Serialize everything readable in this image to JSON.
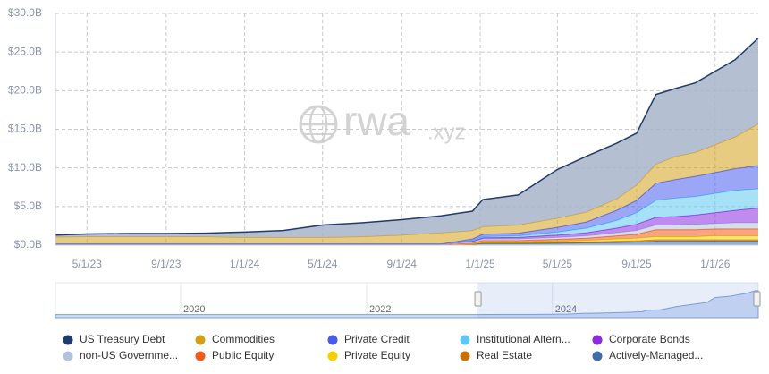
{
  "chart_data": {
    "type": "stacked-area",
    "watermark": {
      "main": "rwa",
      "suffix": ".xyz"
    },
    "x": [
      "2023-03-13",
      "2023-05-01",
      "2023-07-01",
      "2023-09-01",
      "2023-11-01",
      "2024-01-01",
      "2024-03-01",
      "2024-05-01",
      "2024-07-01",
      "2024-09-01",
      "2024-11-01",
      "2024-12-20",
      "2025-01-05",
      "2025-03-01",
      "2025-05-01",
      "2025-06-15",
      "2025-08-01",
      "2025-09-01",
      "2025-10-01",
      "2025-11-01",
      "2025-12-01",
      "2026-01-01",
      "2026-02-01",
      "2026-03-09"
    ],
    "xlim": [
      "2023-03-13",
      "2026-03-09"
    ],
    "xticks": [
      {
        "value": "2023-05-01",
        "label": "5/1/23"
      },
      {
        "value": "2023-09-01",
        "label": "9/1/23"
      },
      {
        "value": "2024-01-01",
        "label": "1/1/24"
      },
      {
        "value": "2024-05-01",
        "label": "5/1/24"
      },
      {
        "value": "2024-09-01",
        "label": "9/1/24"
      },
      {
        "value": "2025-01-01",
        "label": "1/1/25"
      },
      {
        "value": "2025-05-01",
        "label": "5/1/25"
      },
      {
        "value": "2025-09-01",
        "label": "9/1/25"
      },
      {
        "value": "2026-01-01",
        "label": "1/1/26"
      }
    ],
    "ylim": [
      0,
      30
    ],
    "yticks": [
      {
        "value": 0,
        "label": "$0.0B"
      },
      {
        "value": 5,
        "label": "$5.0B"
      },
      {
        "value": 10,
        "label": "$10.0B"
      },
      {
        "value": 15,
        "label": "$15.0B"
      },
      {
        "value": 20,
        "label": "$20.0B"
      },
      {
        "value": 25,
        "label": "$25.0B"
      },
      {
        "value": 30,
        "label": "$30.0B"
      }
    ],
    "grid": true,
    "series": [
      {
        "name": "US Treasury Debt",
        "color": "#1f3a6b",
        "values": [
          0.25,
          0.35,
          0.4,
          0.4,
          0.45,
          0.7,
          0.9,
          1.6,
          1.8,
          2.0,
          2.2,
          2.5,
          3.5,
          3.9,
          6.3,
          7.2,
          7.2,
          6.7,
          9.0,
          8.8,
          9.0,
          9.5,
          10.0,
          11.1
        ]
      },
      {
        "name": "Commodities",
        "color": "#d4a017",
        "values": [
          0.9,
          0.95,
          0.95,
          0.95,
          0.95,
          0.85,
          0.85,
          0.85,
          0.95,
          1.15,
          1.45,
          1.1,
          1.0,
          1.05,
          1.2,
          1.3,
          1.5,
          2.0,
          2.5,
          3.0,
          3.1,
          3.6,
          4.1,
          5.4
        ]
      },
      {
        "name": "Private Credit",
        "color": "#4a5cf0",
        "values": [
          0,
          0,
          0,
          0,
          0,
          0,
          0,
          0,
          0,
          0,
          0,
          0.2,
          0.3,
          0.35,
          0.6,
          0.8,
          1.3,
          1.6,
          2.2,
          2.4,
          2.6,
          2.7,
          2.8,
          3.0
        ]
      },
      {
        "name": "Institutional Altern...",
        "color": "#5cc8f2",
        "values": [
          0,
          0,
          0,
          0,
          0,
          0,
          0,
          0,
          0,
          0,
          0,
          0.1,
          0.15,
          0.2,
          0.4,
          0.6,
          1.0,
          1.5,
          2.2,
          2.4,
          2.4,
          2.5,
          2.6,
          2.5
        ]
      },
      {
        "name": "Corporate Bonds",
        "color": "#8b2be2",
        "values": [
          0,
          0,
          0,
          0,
          0,
          0,
          0,
          0,
          0,
          0,
          0,
          0.1,
          0.15,
          0.2,
          0.3,
          0.4,
          0.6,
          0.8,
          1.0,
          1.1,
          1.2,
          1.4,
          1.6,
          1.9
        ]
      },
      {
        "name": "non-US Governme...",
        "color": "#b2c3dc",
        "values": [
          0.1,
          0.1,
          0.1,
          0.1,
          0.1,
          0.1,
          0.1,
          0.1,
          0.1,
          0.1,
          0.1,
          0.15,
          0.2,
          0.2,
          0.25,
          0.3,
          0.4,
          0.5,
          0.6,
          0.6,
          0.7,
          0.7,
          0.8,
          0.8
        ]
      },
      {
        "name": "Public Equity",
        "color": "#f05a1a",
        "values": [
          0,
          0,
          0,
          0,
          0,
          0,
          0,
          0,
          0,
          0,
          0,
          0.05,
          0.2,
          0.2,
          0.25,
          0.3,
          0.4,
          0.5,
          0.9,
          0.9,
          0.9,
          0.9,
          0.9,
          0.9
        ]
      },
      {
        "name": "Private Equity",
        "color": "#f5d000",
        "values": [
          0,
          0,
          0,
          0,
          0,
          0,
          0,
          0,
          0,
          0,
          0,
          0.05,
          0.1,
          0.1,
          0.15,
          0.2,
          0.3,
          0.35,
          0.4,
          0.4,
          0.4,
          0.5,
          0.5,
          0.5
        ]
      },
      {
        "name": "Real Estate",
        "color": "#c8700a",
        "values": [
          0.05,
          0.05,
          0.05,
          0.05,
          0.05,
          0.05,
          0.05,
          0.05,
          0.05,
          0.05,
          0.05,
          0.05,
          0.1,
          0.1,
          0.1,
          0.1,
          0.15,
          0.15,
          0.2,
          0.2,
          0.2,
          0.2,
          0.2,
          0.2
        ]
      },
      {
        "name": "Actively-Managed...",
        "color": "#3d6ea5",
        "values": [
          0,
          0,
          0,
          0,
          0,
          0,
          0,
          0,
          0,
          0,
          0,
          0.1,
          0.2,
          0.2,
          0.25,
          0.3,
          0.35,
          0.4,
          0.5,
          0.5,
          0.5,
          0.5,
          0.5,
          0.5
        ]
      }
    ],
    "navigator": {
      "xticks": [
        {
          "value": "2020-01-01",
          "label": "2020"
        },
        {
          "value": "2022-01-01",
          "label": "2022"
        },
        {
          "value": "2024-01-01",
          "label": "2024"
        }
      ]
    }
  }
}
